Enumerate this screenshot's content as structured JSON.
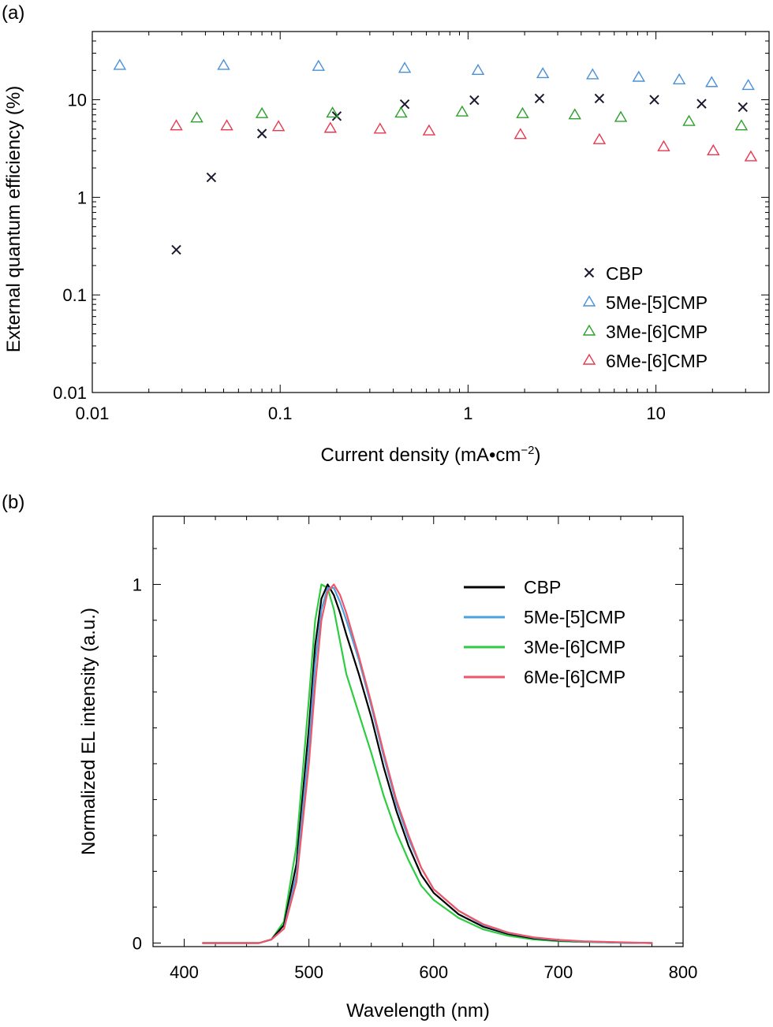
{
  "chart_data": [
    {
      "panel_label": "(a)",
      "type": "scatter",
      "xlabel_main": "Current density (mA•cm",
      "xlabel_sup": "−2",
      "xlabel_close": ")",
      "ylabel": "External quantum efficiency (%)",
      "xscale": "log",
      "yscale": "log",
      "xlim": [
        0.01,
        40
      ],
      "ylim": [
        0.01,
        50
      ],
      "xticks": [
        {
          "value": 0.01,
          "label": "0.01"
        },
        {
          "value": 0.1,
          "label": "0.1"
        },
        {
          "value": 1,
          "label": "1"
        },
        {
          "value": 10,
          "label": "10"
        }
      ],
      "yticks": [
        {
          "value": 0.01,
          "label": "0.01"
        },
        {
          "value": 0.1,
          "label": "0.1"
        },
        {
          "value": 1,
          "label": "1"
        },
        {
          "value": 10,
          "label": "10"
        }
      ],
      "grid": false,
      "legend_position": "lower-right",
      "series": [
        {
          "name": "CBP",
          "marker": "x",
          "color": "#1a1a2e",
          "points": [
            [
              0.028,
              0.29
            ],
            [
              0.043,
              1.6
            ],
            [
              0.08,
              4.5
            ],
            [
              0.2,
              6.8
            ],
            [
              0.46,
              9.0
            ],
            [
              1.08,
              9.9
            ],
            [
              2.4,
              10.3
            ],
            [
              5.0,
              10.3
            ],
            [
              9.8,
              10.0
            ],
            [
              17.5,
              9.1
            ],
            [
              29.0,
              8.4
            ]
          ]
        },
        {
          "name": "5Me-[5]CMP",
          "marker": "triangle",
          "color": "#4a90d9",
          "points": [
            [
              0.014,
              22.5
            ],
            [
              0.05,
              22.5
            ],
            [
              0.16,
              22.0
            ],
            [
              0.46,
              21.0
            ],
            [
              1.13,
              20.0
            ],
            [
              2.5,
              18.5
            ],
            [
              4.6,
              18.0
            ],
            [
              8.1,
              17.0
            ],
            [
              13.3,
              16.0
            ],
            [
              19.8,
              15.0
            ],
            [
              31.0,
              14.0
            ]
          ]
        },
        {
          "name": "3Me-[6]CMP",
          "marker": "triangle",
          "color": "#2ca02c",
          "points": [
            [
              0.036,
              6.5
            ],
            [
              0.08,
              7.2
            ],
            [
              0.19,
              7.3
            ],
            [
              0.44,
              7.3
            ],
            [
              0.93,
              7.5
            ],
            [
              1.95,
              7.2
            ],
            [
              3.7,
              7.0
            ],
            [
              6.5,
              6.6
            ],
            [
              15.0,
              6.0
            ],
            [
              28.5,
              5.4
            ]
          ]
        },
        {
          "name": "6Me-[6]CMP",
          "marker": "triangle",
          "color": "#e8384f",
          "points": [
            [
              0.028,
              5.4
            ],
            [
              0.052,
              5.4
            ],
            [
              0.098,
              5.3
            ],
            [
              0.185,
              5.1
            ],
            [
              0.34,
              5.0
            ],
            [
              0.62,
              4.8
            ],
            [
              1.9,
              4.4
            ],
            [
              5.0,
              3.9
            ],
            [
              11.0,
              3.3
            ],
            [
              20.2,
              3.0
            ],
            [
              32.0,
              2.6
            ]
          ]
        }
      ]
    },
    {
      "panel_label": "(b)",
      "type": "line",
      "xlabel": "Wavelength (nm)",
      "ylabel": "Normalized EL intensity (a.u.)",
      "xlim": [
        375,
        800
      ],
      "ylim": [
        -0.01,
        1.19
      ],
      "xticks": [
        {
          "value": 400,
          "label": "400"
        },
        {
          "value": 500,
          "label": "500"
        },
        {
          "value": 600,
          "label": "600"
        },
        {
          "value": 700,
          "label": "700"
        },
        {
          "value": 800,
          "label": "800"
        }
      ],
      "yticks": [
        {
          "value": 0,
          "label": "0"
        },
        {
          "value": 1,
          "label": "1"
        }
      ],
      "grid": false,
      "legend_position": "top-right",
      "series": [
        {
          "name": "CBP",
          "color": "#000000",
          "x": [
            415,
            460,
            470,
            480,
            490,
            500,
            505,
            510,
            515,
            520,
            525,
            530,
            540,
            550,
            560,
            570,
            580,
            590,
            600,
            620,
            640,
            660,
            680,
            700,
            720,
            750,
            775
          ],
          "y": [
            0.0,
            0.0,
            0.01,
            0.05,
            0.22,
            0.6,
            0.83,
            0.96,
            1.0,
            0.97,
            0.92,
            0.86,
            0.75,
            0.63,
            0.49,
            0.37,
            0.27,
            0.19,
            0.14,
            0.08,
            0.045,
            0.025,
            0.013,
            0.007,
            0.004,
            0.001,
            0.0
          ]
        },
        {
          "name": "5Me-[5]CMP",
          "color": "#4aa3df",
          "x": [
            415,
            460,
            470,
            480,
            490,
            500,
            505,
            510,
            515,
            520,
            525,
            530,
            540,
            550,
            560,
            570,
            580,
            590,
            600,
            620,
            640,
            660,
            680,
            700,
            720,
            750,
            775
          ],
          "y": [
            0.0,
            0.0,
            0.01,
            0.04,
            0.19,
            0.55,
            0.78,
            0.93,
            0.99,
            0.99,
            0.95,
            0.9,
            0.79,
            0.66,
            0.52,
            0.39,
            0.29,
            0.21,
            0.15,
            0.09,
            0.05,
            0.028,
            0.015,
            0.008,
            0.004,
            0.001,
            0.0
          ]
        },
        {
          "name": "3Me-[6]CMP",
          "color": "#2ecc40",
          "x": [
            415,
            460,
            470,
            480,
            490,
            500,
            505,
            510,
            515,
            520,
            525,
            530,
            540,
            550,
            560,
            570,
            580,
            590,
            600,
            620,
            640,
            660,
            680,
            700,
            720,
            750,
            775
          ],
          "y": [
            0.0,
            0.0,
            0.01,
            0.06,
            0.27,
            0.68,
            0.9,
            1.0,
            0.99,
            0.93,
            0.84,
            0.75,
            0.64,
            0.53,
            0.41,
            0.31,
            0.23,
            0.16,
            0.12,
            0.07,
            0.038,
            0.02,
            0.01,
            0.005,
            0.003,
            0.001,
            0.0
          ]
        },
        {
          "name": "6Me-[6]CMP",
          "color": "#f0566a",
          "x": [
            415,
            460,
            470,
            480,
            490,
            500,
            505,
            510,
            515,
            520,
            525,
            530,
            540,
            550,
            560,
            570,
            580,
            590,
            600,
            620,
            640,
            660,
            680,
            700,
            720,
            750,
            775
          ],
          "y": [
            0.0,
            0.0,
            0.01,
            0.04,
            0.17,
            0.5,
            0.72,
            0.9,
            0.98,
            1.0,
            0.97,
            0.92,
            0.8,
            0.67,
            0.53,
            0.4,
            0.3,
            0.21,
            0.15,
            0.09,
            0.052,
            0.029,
            0.016,
            0.009,
            0.005,
            0.002,
            0.0
          ]
        }
      ]
    }
  ]
}
